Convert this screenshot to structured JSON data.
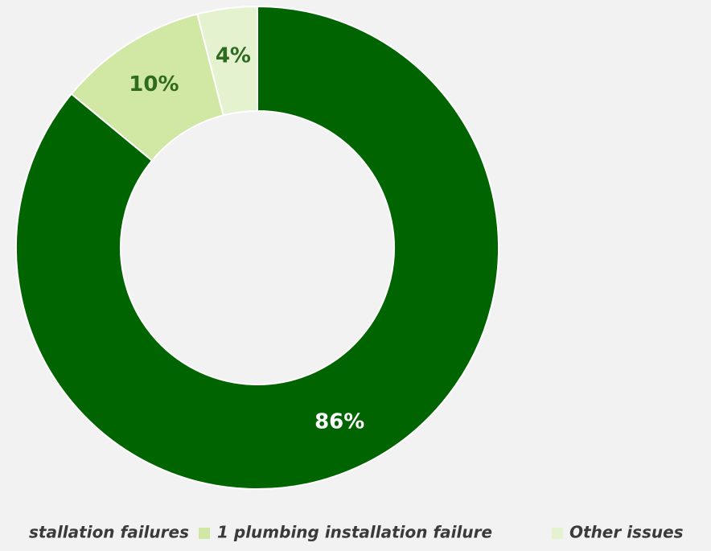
{
  "chart_data": {
    "type": "donut",
    "categories": [
      "stallation failures",
      "1 plumbing installation failure",
      "Other issues"
    ],
    "values": [
      86,
      10,
      4
    ],
    "value_labels": [
      "86%",
      "10%",
      "4%"
    ],
    "colors": [
      "#006400",
      "#d0e8a4",
      "#e4f2d0"
    ],
    "legend": "bottom"
  }
}
